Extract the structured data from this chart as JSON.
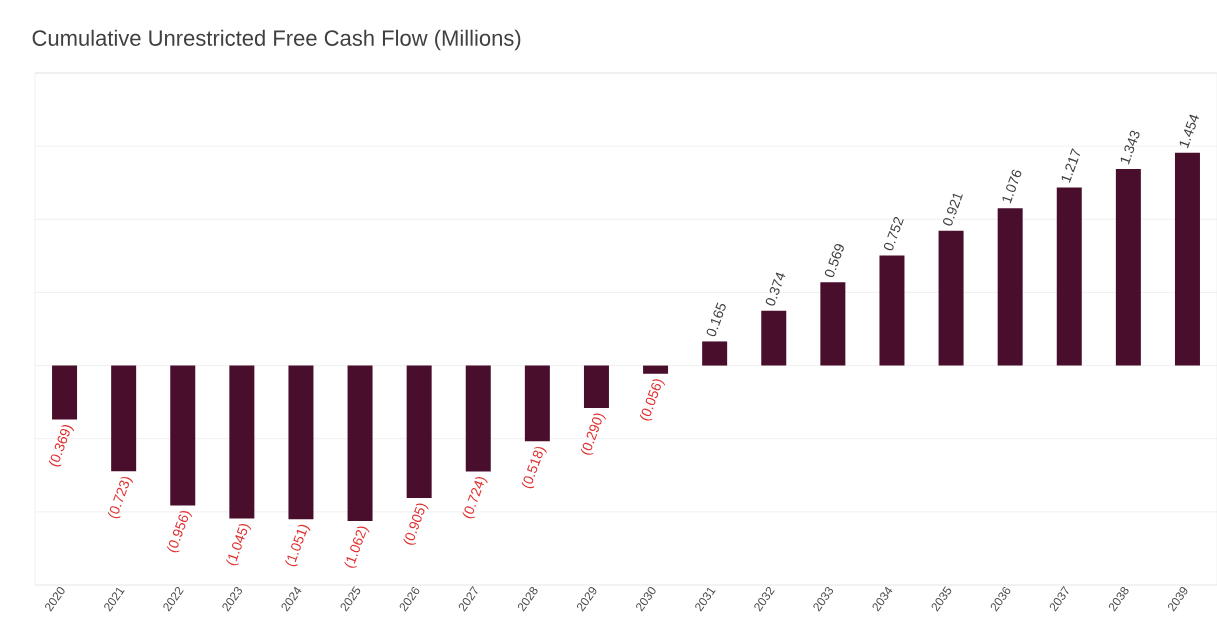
{
  "chart_data": {
    "type": "bar",
    "title": "Cumulative Unrestricted Free Cash Flow (Millions)",
    "categories": [
      "2020",
      "2021",
      "2022",
      "2023",
      "2024",
      "2025",
      "2026",
      "2027",
      "2028",
      "2029",
      "2030",
      "2031",
      "2032",
      "2033",
      "2034",
      "2035",
      "2036",
      "2037",
      "2038",
      "2039"
    ],
    "values": [
      -0.369,
      -0.723,
      -0.956,
      -1.045,
      -1.051,
      -1.062,
      -0.905,
      -0.724,
      -0.518,
      -0.29,
      -0.056,
      0.165,
      0.374,
      0.569,
      0.752,
      0.921,
      1.076,
      1.217,
      1.343,
      1.454
    ],
    "value_labels": [
      "(0.369)",
      "(0.723)",
      "(0.956)",
      "(1.045)",
      "(1.051)",
      "(1.062)",
      "(0.905)",
      "(0.724)",
      "(0.518)",
      "(0.290)",
      "(0.056)",
      "0.165",
      "0.374",
      "0.569",
      "0.752",
      "0.921",
      "1.076",
      "1.217",
      "1.343",
      "1.454"
    ],
    "color": "#4a0e2d",
    "ylim": [
      -1.5,
      2.0
    ],
    "yticks": [
      {
        "value": -1.5,
        "label": null
      },
      {
        "value": -1.0,
        "label": null
      },
      {
        "value": -0.5,
        "label": null
      },
      {
        "value": 0,
        "label": null
      },
      {
        "value": 0.5,
        "label": null
      },
      {
        "value": 1.0,
        "label": null
      },
      {
        "value": 1.5,
        "label": null
      },
      {
        "value": 2.0,
        "label": null
      }
    ],
    "tick_labels": "x",
    "grid": "y"
  }
}
